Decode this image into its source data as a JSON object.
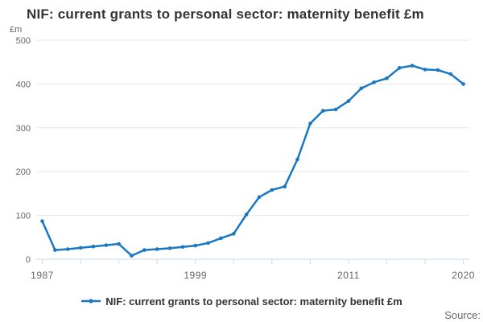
{
  "title": "NIF: current grants to personal sector: maternity benefit £m",
  "y_axis_unit_label": "£m",
  "source_label": "Source:",
  "legend": {
    "label": "NIF: current grants to personal sector: maternity benefit £m"
  },
  "colors": {
    "line": "#1a78c2",
    "grid": "#e6e6e6",
    "axis": "#ccd6eb",
    "title_text": "#333333",
    "axis_label_text": "#666666",
    "source_text": "#666666"
  },
  "chart_data": {
    "type": "line",
    "title": "NIF: current grants to personal sector: maternity benefit £m",
    "xlabel": "",
    "ylabel": "£m",
    "ylim": [
      0,
      500
    ],
    "y_ticks": [
      0,
      100,
      200,
      300,
      400,
      500
    ],
    "x_range": [
      1987,
      2020
    ],
    "x_tick_interval": 3,
    "x_ticks_labeled": [
      1987,
      1999,
      2011,
      2020
    ],
    "grid": "horizontal",
    "legend_position": "bottom",
    "marker": "circle",
    "x": [
      1987,
      1988,
      1989,
      1990,
      1991,
      1992,
      1993,
      1994,
      1995,
      1996,
      1997,
      1998,
      1999,
      2000,
      2001,
      2002,
      2003,
      2004,
      2005,
      2006,
      2007,
      2008,
      2009,
      2010,
      2011,
      2012,
      2013,
      2014,
      2015,
      2016,
      2017,
      2018,
      2019,
      2020
    ],
    "series": [
      {
        "name": "NIF: current grants to personal sector: maternity benefit £m",
        "values": [
          87,
          21,
          23,
          26,
          29,
          32,
          35,
          8,
          21,
          23,
          25,
          28,
          31,
          37,
          48,
          58,
          102,
          142,
          158,
          166,
          228,
          310,
          339,
          342,
          361,
          390,
          404,
          413,
          437,
          442,
          433,
          432,
          423,
          400
        ]
      }
    ]
  }
}
